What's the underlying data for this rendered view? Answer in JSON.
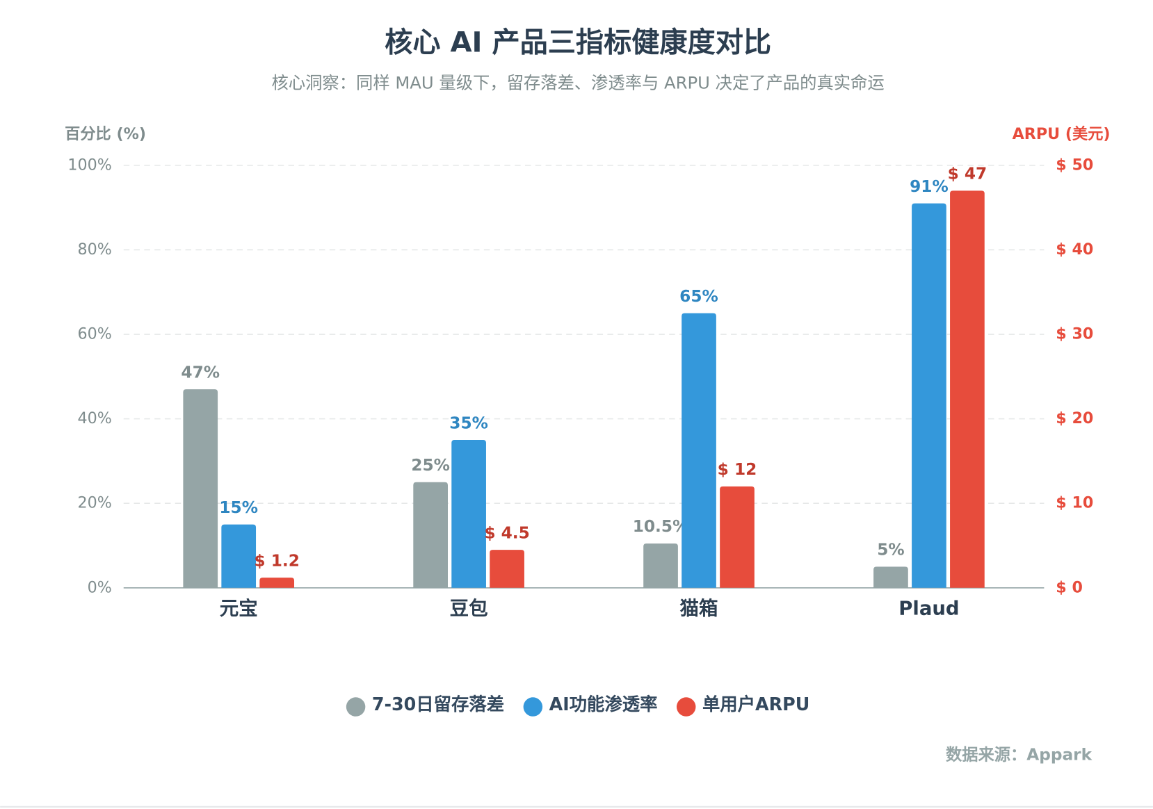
{
  "chart_data": {
    "type": "bar",
    "title": "核心 AI 产品三指标健康度对比",
    "subtitle": "核心洞察：同样 MAU 量级下，留存落差、渗透率与 ARPU 决定了产品的真实命运",
    "y_label": "百分比 (%)",
    "y2_label": "ARPU (美元)",
    "source": "数据来源：Appark",
    "categories": [
      "元宝",
      "豆包",
      "猫箱",
      "Plaud"
    ],
    "series": [
      {
        "name": "7-30日留存落差",
        "color": "#95a5a6",
        "label_color": "#7f8c8d",
        "values": [
          47,
          25,
          10.5,
          5
        ],
        "value_labels": [
          "47%",
          "25%",
          "10.5%",
          "5%"
        ]
      },
      {
        "name": "AI功能渗透率",
        "color": "#3498db",
        "label_color": "#2e86c1",
        "values": [
          15,
          35,
          65,
          91
        ],
        "value_labels": [
          "15%",
          "35%",
          "65%",
          "91%"
        ]
      },
      {
        "name": "单用户ARPU",
        "color": "#e74c3c",
        "label_color": "#c0392b",
        "axis": "y2",
        "values": [
          1.2,
          4.5,
          12,
          47
        ],
        "value_labels": [
          "$ 1.2",
          "$ 4.5",
          "$ 12",
          "$ 47"
        ]
      }
    ],
    "ylim": [
      0,
      100
    ],
    "yticks": [
      {
        "value": 0,
        "label": "0%"
      },
      {
        "value": 20,
        "label": "20%"
      },
      {
        "value": 40,
        "label": "40%"
      },
      {
        "value": 60,
        "label": "60%"
      },
      {
        "value": 80,
        "label": "80%"
      },
      {
        "value": 100,
        "label": "100%"
      }
    ],
    "y2lim": [
      0,
      50
    ],
    "y2ticks": [
      {
        "value": 0,
        "label": "$ 0"
      },
      {
        "value": 10,
        "label": "$ 10"
      },
      {
        "value": 20,
        "label": "$ 20"
      },
      {
        "value": 30,
        "label": "$ 30"
      },
      {
        "value": 40,
        "label": "$ 40"
      },
      {
        "value": 50,
        "label": "$ 50"
      }
    ],
    "grid": true,
    "legend": "bottom"
  }
}
